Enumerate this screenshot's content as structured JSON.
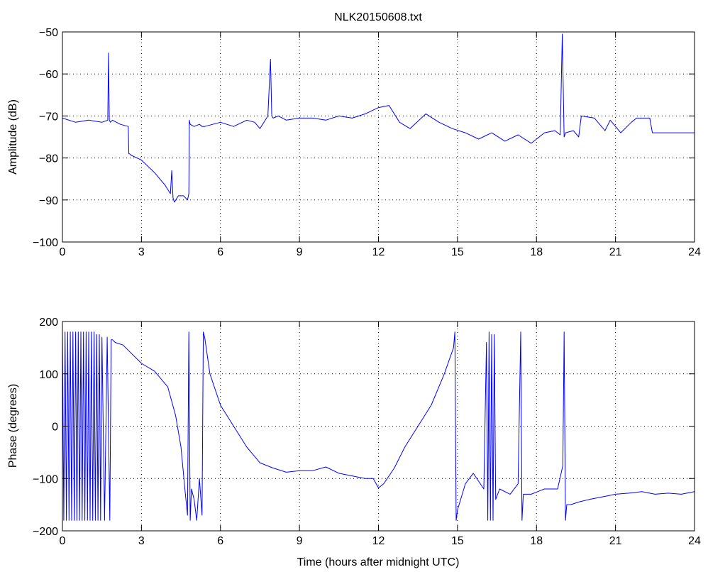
{
  "chart_data": [
    {
      "type": "line",
      "title": "NLK20150608.txt",
      "xlabel": "",
      "ylabel": "Amplitude (dB)",
      "xlim": [
        0,
        24
      ],
      "ylim": [
        -100,
        -50
      ],
      "xticks": [
        0,
        3,
        6,
        9,
        12,
        15,
        18,
        21,
        24
      ],
      "yticks": [
        -50,
        -60,
        -70,
        -80,
        -90,
        -100
      ],
      "ytick_labels": [
        "−50",
        "−60",
        "−70",
        "−80",
        "−90",
        "−100"
      ],
      "grid": true,
      "line_color": "#0000ff",
      "series": [
        {
          "x": [
            0,
            0.5,
            1.0,
            1.5,
            1.72,
            1.75,
            1.78,
            1.82,
            1.9,
            2.2,
            2.5,
            2.52,
            2.55,
            2.6,
            3.0,
            3.5,
            3.9,
            4.1,
            4.15,
            4.2,
            4.25,
            4.4,
            4.6,
            4.75,
            4.8,
            4.82,
            4.85,
            5.0,
            5.2,
            5.3,
            5.4,
            6.0,
            6.5,
            7.0,
            7.3,
            7.5,
            7.8,
            7.9,
            7.95,
            8.0,
            8.2,
            8.5,
            9.0,
            9.5,
            10.0,
            10.5,
            11.0,
            11.5,
            12.0,
            12.4,
            12.8,
            13.2,
            13.8,
            14.3,
            14.8,
            15.3,
            15.8,
            16.3,
            16.8,
            17.3,
            17.8,
            18.3,
            18.7,
            18.9,
            18.98,
            19.05,
            19.1,
            19.4,
            19.6,
            19.7,
            20.2,
            20.6,
            20.8,
            21.2,
            21.6,
            21.8,
            22.3,
            22.4,
            23.0,
            24.0
          ],
          "y": [
            -70.5,
            -71.5,
            -71.0,
            -71.5,
            -71.0,
            -55.0,
            -71.0,
            -71.5,
            -71.0,
            -72.0,
            -72.5,
            -79.0,
            -79.0,
            -79.3,
            -80.5,
            -83.5,
            -86.5,
            -88.5,
            -83.0,
            -89.5,
            -90.5,
            -89.0,
            -89.0,
            -90.0,
            -88.5,
            -71.0,
            -72.0,
            -72.5,
            -72.0,
            -72.5,
            -72.5,
            -71.5,
            -72.5,
            -71.0,
            -71.5,
            -73.0,
            -70.0,
            -56.5,
            -70.0,
            -70.5,
            -70.0,
            -71.0,
            -70.5,
            -70.5,
            -71.0,
            -70.0,
            -70.5,
            -69.5,
            -68.0,
            -67.5,
            -71.5,
            -73.0,
            -69.5,
            -71.5,
            -73.0,
            -74.0,
            -75.5,
            -74.0,
            -76.0,
            -74.5,
            -76.5,
            -74.0,
            -73.5,
            -74.5,
            -50.5,
            -75.0,
            -74.0,
            -73.5,
            -75.0,
            -70.0,
            -70.5,
            -73.5,
            -71.0,
            -74.0,
            -71.5,
            -70.5,
            -70.5,
            -74.0,
            -74.0,
            -74.0
          ]
        }
      ]
    },
    {
      "type": "line",
      "title": "",
      "xlabel": "Time (hours after midnight UTC)",
      "ylabel": "Phase (degrees)",
      "xlim": [
        0,
        24
      ],
      "ylim": [
        -200,
        200
      ],
      "xticks": [
        0,
        3,
        6,
        9,
        12,
        15,
        18,
        21,
        24
      ],
      "yticks": [
        200,
        100,
        0,
        -100,
        -200
      ],
      "ytick_labels": [
        "200",
        "100",
        "0",
        "−100",
        "−200"
      ],
      "grid": true,
      "line_color": "#0000ff",
      "series": [
        {
          "x": [
            0,
            0.05,
            0.1,
            0.15,
            0.2,
            0.25,
            0.3,
            0.35,
            0.4,
            0.45,
            0.5,
            0.55,
            0.6,
            0.65,
            0.7,
            0.75,
            0.8,
            0.85,
            0.9,
            0.95,
            1.0,
            1.05,
            1.1,
            1.15,
            1.2,
            1.25,
            1.3,
            1.35,
            1.4,
            1.45,
            1.5,
            1.6,
            1.7,
            1.8,
            1.85,
            1.9,
            2.0,
            2.3,
            2.6,
            3.0,
            3.5,
            4.0,
            4.3,
            4.5,
            4.65,
            4.75,
            4.8,
            4.85,
            4.9,
            5.0,
            5.1,
            5.2,
            5.3,
            5.35,
            5.4,
            5.6,
            6.0,
            6.5,
            7.0,
            7.5,
            8.0,
            8.5,
            9.0,
            9.5,
            10.0,
            10.5,
            11.0,
            11.5,
            11.8,
            12.0,
            12.2,
            12.6,
            13.0,
            13.5,
            14.0,
            14.5,
            14.85,
            14.9,
            14.95,
            15.0,
            15.3,
            15.6,
            16.0,
            16.1,
            16.15,
            16.2,
            16.25,
            16.3,
            16.35,
            16.4,
            16.45,
            16.6,
            17.0,
            17.3,
            17.4,
            17.45,
            17.5,
            17.8,
            18.3,
            18.8,
            19.0,
            19.05,
            19.1,
            19.15,
            19.3,
            19.6,
            20.0,
            20.5,
            21.0,
            21.5,
            22.0,
            22.5,
            23.0,
            23.5,
            24.0
          ],
          "y": [
            180,
            -180,
            180,
            -180,
            180,
            -180,
            180,
            -180,
            180,
            -180,
            180,
            -180,
            180,
            -180,
            180,
            -180,
            180,
            -180,
            180,
            -180,
            180,
            -180,
            180,
            -180,
            180,
            -180,
            175,
            -180,
            175,
            -180,
            170,
            -180,
            170,
            -180,
            165,
            165,
            160,
            155,
            140,
            120,
            105,
            75,
            20,
            -40,
            -120,
            -170,
            180,
            -180,
            -120,
            -140,
            -180,
            -100,
            -170,
            180,
            170,
            100,
            40,
            0,
            -40,
            -70,
            -80,
            -88,
            -85,
            -85,
            -78,
            -90,
            -95,
            -100,
            -100,
            -118,
            -110,
            -80,
            -40,
            0,
            40,
            100,
            150,
            180,
            -180,
            -160,
            -110,
            -90,
            -120,
            160,
            -180,
            180,
            -180,
            175,
            -180,
            175,
            -140,
            -120,
            -130,
            -110,
            180,
            -180,
            -130,
            -130,
            -120,
            -120,
            -75,
            180,
            -180,
            -150,
            -150,
            -145,
            -140,
            -135,
            -130,
            -128,
            -125,
            -130,
            -128,
            -130,
            -125
          ]
        }
      ]
    }
  ]
}
